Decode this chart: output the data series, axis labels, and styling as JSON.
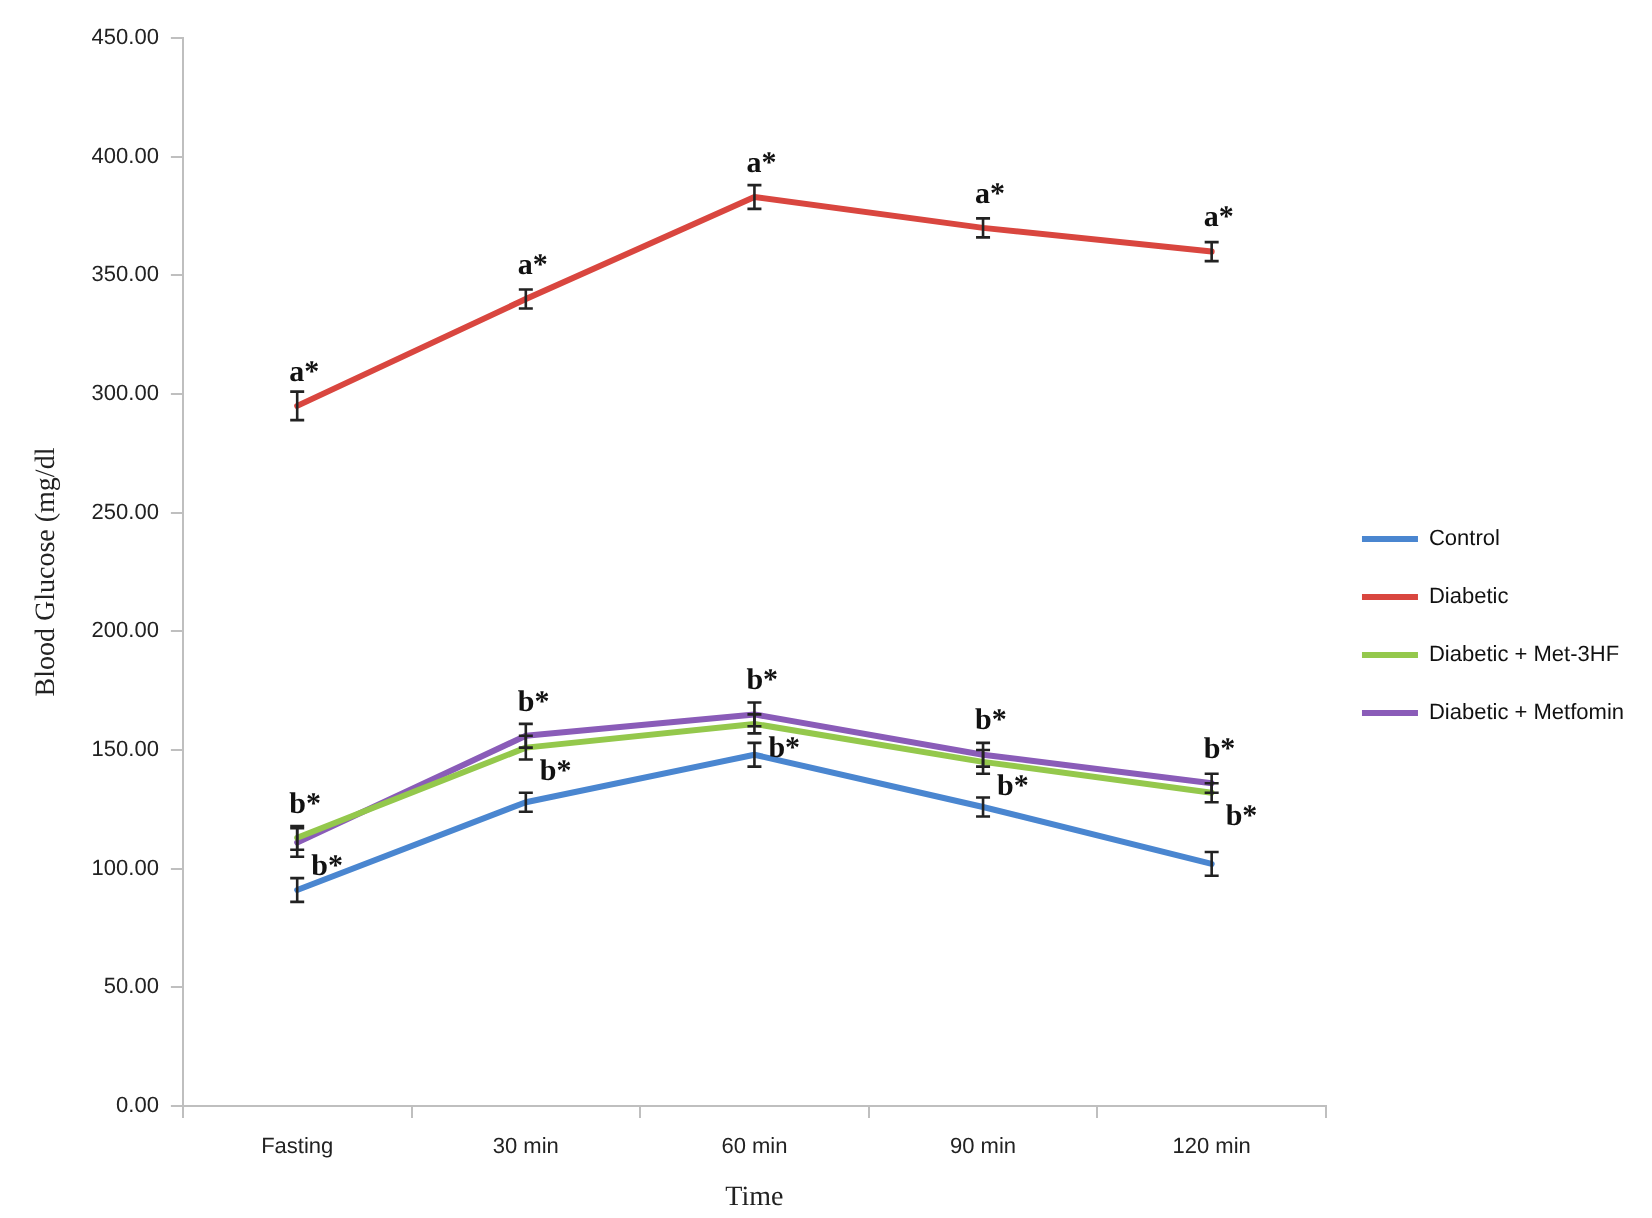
{
  "chart_data": {
    "type": "line",
    "xlabel": "Time",
    "ylabel": "Blood Glucose (mg/dl",
    "categories": [
      "Fasting",
      "30 min",
      "60 min",
      "90 min",
      "120 min"
    ],
    "series": [
      {
        "name": "Control",
        "color": "#4a86d0",
        "values": [
          91,
          128,
          148,
          126,
          102
        ],
        "errors": [
          5,
          4,
          5,
          4,
          5
        ]
      },
      {
        "name": "Diabetic",
        "color": "#d9463f",
        "values": [
          295,
          340,
          383,
          370,
          360
        ],
        "errors": [
          6,
          4,
          5,
          4,
          4
        ]
      },
      {
        "name": "Diabetic + Met-3HF",
        "color": "#94c84c",
        "values": [
          113,
          151,
          161,
          145,
          132
        ],
        "errors": [
          5,
          5,
          4,
          5,
          4
        ]
      },
      {
        "name": "Diabetic + Metfomin",
        "color": "#8a5cb8",
        "values": [
          111,
          156,
          165,
          148,
          136
        ],
        "errors": [
          6,
          5,
          5,
          5,
          4
        ]
      }
    ],
    "ylim": [
      0,
      450
    ],
    "yticks": [
      {
        "value": 0,
        "label": "0.00"
      },
      {
        "value": 50,
        "label": "50.00"
      },
      {
        "value": 100,
        "label": "100.00"
      },
      {
        "value": 150,
        "label": "150.00"
      },
      {
        "value": 200,
        "label": "200.00"
      },
      {
        "value": 250,
        "label": "250.00"
      },
      {
        "value": 300,
        "label": "300.00"
      },
      {
        "value": 350,
        "label": "350.00"
      },
      {
        "value": 400,
        "label": "400.00"
      },
      {
        "value": 450,
        "label": "450.00"
      }
    ],
    "grid": false,
    "legend": "right",
    "line_style": "solid",
    "annotations": [
      {
        "text": "a*",
        "x": "Fasting",
        "y": 295
      },
      {
        "text": "a*",
        "x": "30 min",
        "y": 340
      },
      {
        "text": "a*",
        "x": "60 min",
        "y": 383
      },
      {
        "text": "a*",
        "x": "90 min",
        "y": 370
      },
      {
        "text": "a*",
        "x": "120 min",
        "y": 360
      },
      {
        "text": "b*",
        "x": "Fasting",
        "y": 113
      },
      {
        "text": "b*",
        "x": "Fasting",
        "y": 111
      },
      {
        "text": "b*",
        "x": "30 min",
        "y": 156
      },
      {
        "text": "b*",
        "x": "30 min",
        "y": 151
      },
      {
        "text": "b*",
        "x": "60 min",
        "y": 165
      },
      {
        "text": "b*",
        "x": "60 min",
        "y": 161
      },
      {
        "text": "b*",
        "x": "90 min",
        "y": 148
      },
      {
        "text": "b*",
        "x": "90 min",
        "y": 145
      },
      {
        "text": "b*",
        "x": "120 min",
        "y": 136
      },
      {
        "text": "b*",
        "x": "120 min",
        "y": 132
      }
    ]
  }
}
